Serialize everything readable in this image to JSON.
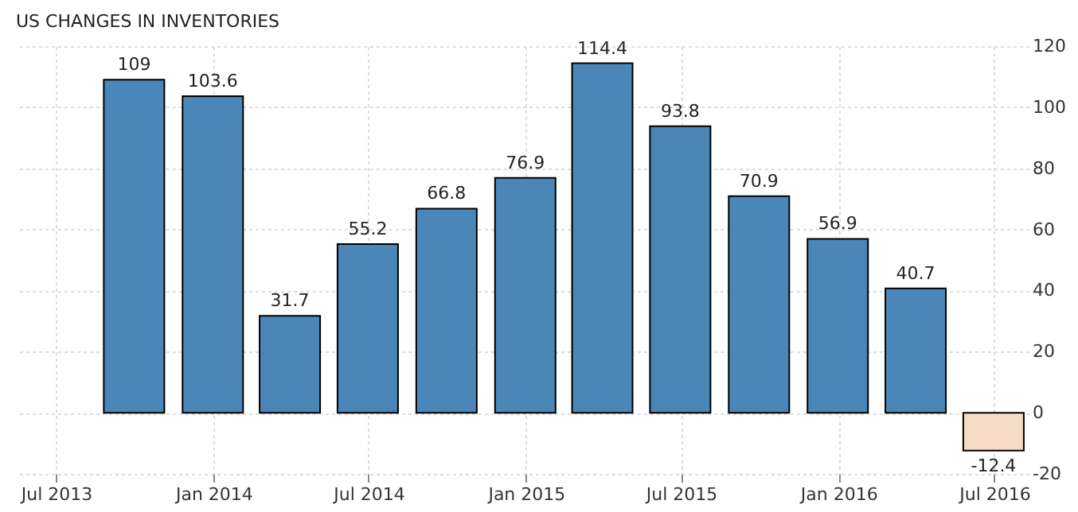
{
  "chart_data": {
    "type": "bar",
    "title": "US CHANGES IN INVENTORIES",
    "x": [
      "2013-09-30",
      "2013-12-31",
      "2014-03-31",
      "2014-06-30",
      "2014-09-30",
      "2014-12-31",
      "2015-03-31",
      "2015-06-30",
      "2015-09-30",
      "2015-12-31",
      "2016-03-31",
      "2016-06-30"
    ],
    "values": [
      109,
      103.6,
      31.7,
      55.2,
      66.8,
      76.9,
      114.4,
      93.8,
      70.9,
      56.9,
      40.7,
      -12.4
    ],
    "colors": [
      "#4a86b8",
      "#4a86b8",
      "#4a86b8",
      "#4a86b8",
      "#4a86b8",
      "#4a86b8",
      "#4a86b8",
      "#4a86b8",
      "#4a86b8",
      "#4a86b8",
      "#4a86b8",
      "#f6dcc4"
    ],
    "data_labels": true,
    "xlim": [
      "2013-05-15",
      "2016-08-10"
    ],
    "xticks": [
      {
        "value": "2013-07-01",
        "label": "Jul 2013"
      },
      {
        "value": "2014-01-01",
        "label": "Jan 2014"
      },
      {
        "value": "2014-07-01",
        "label": "Jul 2014"
      },
      {
        "value": "2015-01-01",
        "label": "Jan 2015"
      },
      {
        "value": "2015-07-01",
        "label": "Jul 2015"
      },
      {
        "value": "2016-01-01",
        "label": "Jan 2016"
      },
      {
        "value": "2016-07-01",
        "label": "Jul 2016"
      }
    ],
    "ylim": [
      -20,
      120
    ],
    "yticks": [
      -20,
      0,
      20,
      40,
      60,
      80,
      100,
      120
    ],
    "grid": true
  }
}
